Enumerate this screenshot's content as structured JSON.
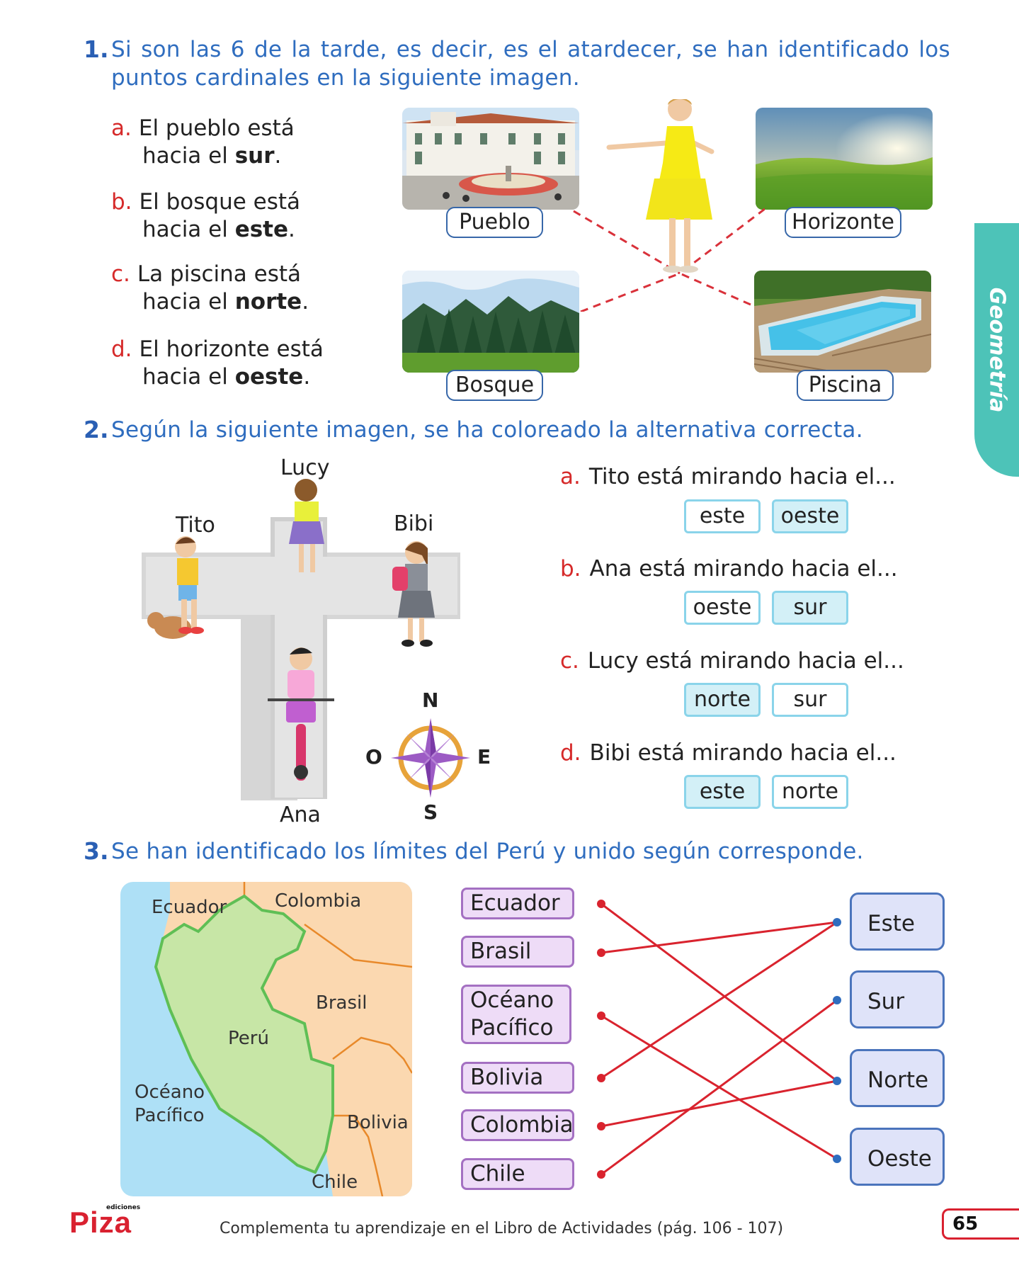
{
  "q1": {
    "number": "1.",
    "text": "Si son las 6 de la tarde, es decir, es el atardecer, se han identificado los puntos cardinales en la siguiente imagen.",
    "statements": [
      {
        "letter": "a.",
        "pre": "El pueblo está hacia el ",
        "bold": "sur",
        "post": "."
      },
      {
        "letter": "b.",
        "pre": "El bosque está hacia el ",
        "bold": "este",
        "post": "."
      },
      {
        "letter": "c.",
        "pre": "La piscina está hacia el ",
        "bold": "norte",
        "post": "."
      },
      {
        "letter": "d.",
        "pre": "El horizonte está hacia el ",
        "bold": "oeste",
        "post": "."
      }
    ],
    "labels": {
      "pueblo": "Pueblo",
      "horizonte": "Horizonte",
      "bosque": "Bosque",
      "piscina": "Piscina"
    }
  },
  "q2": {
    "number": "2.",
    "text": "Según la siguiente imagen, se ha coloreado la alternativa correcta.",
    "names": {
      "lucy": "Lucy",
      "tito": "Tito",
      "bibi": "Bibi",
      "ana": "Ana"
    },
    "compass": {
      "n": "N",
      "s": "S",
      "e": "E",
      "o": "O"
    },
    "questions": [
      {
        "letter": "a.",
        "text": "Tito está mirando hacia el...",
        "options": [
          "este",
          "oeste"
        ],
        "selected": 1
      },
      {
        "letter": "b.",
        "text": "Ana está mirando hacia el...",
        "options": [
          "oeste",
          "sur"
        ],
        "selected": 1
      },
      {
        "letter": "c.",
        "text": "Lucy está mirando hacia el...",
        "options": [
          "norte",
          "sur"
        ],
        "selected": 0
      },
      {
        "letter": "d.",
        "text": "Bibi está mirando hacia el...",
        "options": [
          "este",
          "norte"
        ],
        "selected": 0
      }
    ]
  },
  "q3": {
    "number": "3.",
    "text": "Se han identificado los límites del Perú y unido según corresponde.",
    "map_labels": {
      "ecuador": "Ecuador",
      "colombia": "Colombia",
      "brasil": "Brasil",
      "peru": "Perú",
      "oceano": "Océano Pacífico",
      "bolivia": "Bolivia",
      "chile": "Chile"
    },
    "countries": [
      "Ecuador",
      "Brasil",
      "Océano Pacífico",
      "Bolivia",
      "Colombia",
      "Chile"
    ],
    "directions": [
      "Este",
      "Sur",
      "Norte",
      "Oeste"
    ],
    "connections": [
      {
        "from": "Ecuador",
        "to": "Norte"
      },
      {
        "from": "Brasil",
        "to": "Este"
      },
      {
        "from": "Océano Pacífico",
        "to": "Oeste"
      },
      {
        "from": "Bolivia",
        "to": "Este"
      },
      {
        "from": "Colombia",
        "to": "Norte"
      },
      {
        "from": "Chile",
        "to": "Sur"
      }
    ]
  },
  "side_tab": "Geometría",
  "footer": {
    "logo_small": "ediciones",
    "logo": "Piza",
    "text": "Complementa tu aprendizaje en el Libro de Actividades (pág. 106 - 107)",
    "page": "65"
  },
  "colors": {
    "blue_text": "#2f6dbf",
    "red_letter": "#d62a2a",
    "tab": "#4dc3b8",
    "dash": "#d9313a",
    "line": "#d9232e"
  }
}
